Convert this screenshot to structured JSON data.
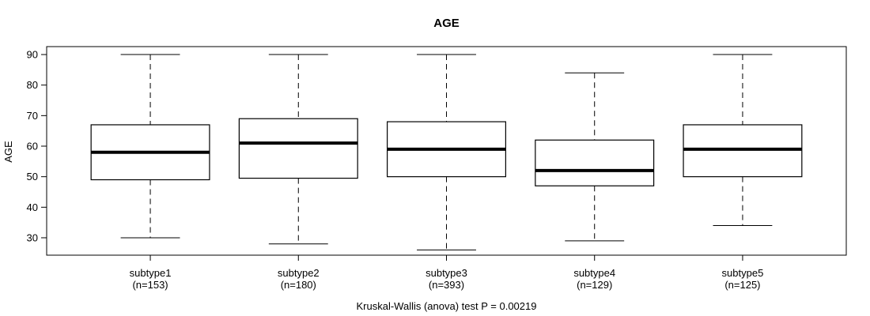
{
  "chart_data": {
    "type": "boxplot",
    "title": "AGE",
    "xlabel": "",
    "ylabel": "AGE",
    "yticks": [
      30,
      40,
      50,
      60,
      70,
      80,
      90
    ],
    "ylim": [
      24.3,
      92.6
    ],
    "grid": false,
    "legend": null,
    "categories": [
      "subtype1",
      "subtype2",
      "subtype3",
      "subtype4",
      "subtype5"
    ],
    "groups": [
      {
        "label": "subtype1",
        "n_label": "(n=153)",
        "n": 153,
        "whisker_low": 30,
        "q1": 49,
        "median": 58,
        "q3": 67,
        "whisker_high": 90
      },
      {
        "label": "subtype2",
        "n_label": "(n=180)",
        "n": 180,
        "whisker_low": 28,
        "q1": 49.5,
        "median": 61,
        "q3": 69,
        "whisker_high": 90
      },
      {
        "label": "subtype3",
        "n_label": "(n=393)",
        "n": 393,
        "whisker_low": 26,
        "q1": 50,
        "median": 59,
        "q3": 68,
        "whisker_high": 90
      },
      {
        "label": "subtype4",
        "n_label": "(n=129)",
        "n": 129,
        "whisker_low": 29,
        "q1": 47,
        "median": 52,
        "q3": 62,
        "whisker_high": 84
      },
      {
        "label": "subtype5",
        "n_label": "(n=125)",
        "n": 125,
        "whisker_low": 34,
        "q1": 50,
        "median": 59,
        "q3": 67,
        "whisker_high": 90
      }
    ],
    "stats_annotation": "Kruskal-Wallis (anova) test P = 0.00219",
    "colors": {
      "line": "#000000",
      "box_fill": "#ffffff",
      "background": "#ffffff"
    }
  }
}
